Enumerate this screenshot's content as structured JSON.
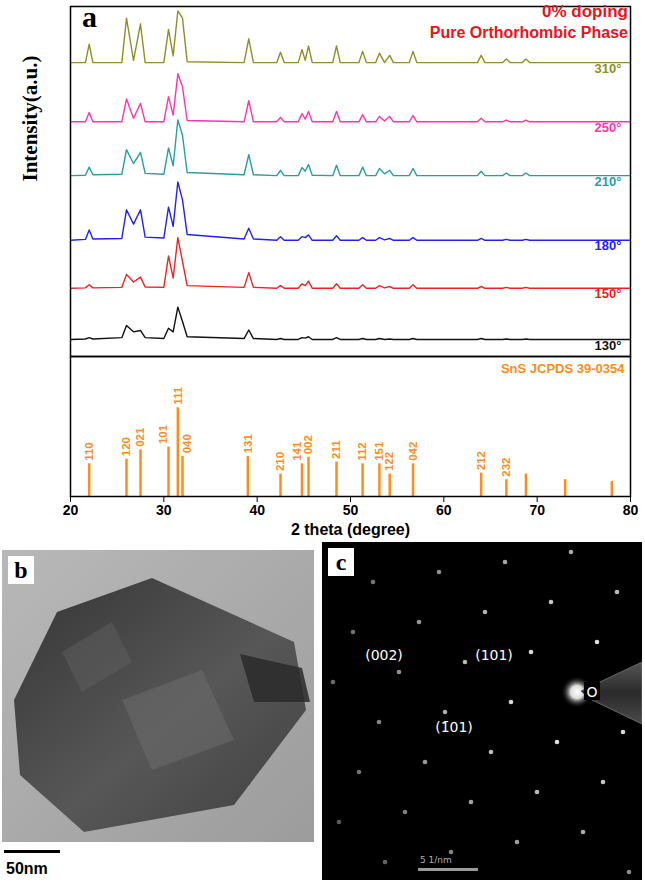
{
  "chart_data": [
    {
      "type": "line",
      "annotations": [
        "a",
        "0% doping",
        "Pure Orthorhombic Phase"
      ],
      "y_label": "Intensity(a.u.)",
      "x": [
        20,
        21.6,
        22,
        22.4,
        25.5,
        26,
        26.75,
        27.5,
        28,
        30,
        30.5,
        31,
        31.5,
        32,
        32.5,
        38.6,
        39.1,
        39.6,
        42.1,
        42.5,
        42.9,
        44.4,
        44.8,
        45.15,
        45.5,
        45.9,
        48.1,
        48.5,
        48.9,
        50.9,
        51.3,
        51.7,
        52.7,
        53.1,
        53.65,
        54.2,
        54.6,
        56.3,
        56.7,
        57.1,
        63.6,
        64,
        64.4,
        66.3,
        66.7,
        67.1,
        68.4,
        68.8,
        69.2,
        80
      ],
      "series": [
        {
          "name": "310°",
          "color": "#8f8f2a",
          "values": [
            89.5,
            89.5,
            93.6,
            89.5,
            89.5,
            99.4,
            90.0,
            98.1,
            89.5,
            89.5,
            96.9,
            91.0,
            101.0,
            99.4,
            89.7,
            89.5,
            94.8,
            89.5,
            89.5,
            91.8,
            89.5,
            89.5,
            92.4,
            90.0,
            93.2,
            89.5,
            89.5,
            93.2,
            89.5,
            89.5,
            92.0,
            89.5,
            89.5,
            91.6,
            89.5,
            91.1,
            89.5,
            89.5,
            92.0,
            89.5,
            89.5,
            91.1,
            89.5,
            89.5,
            90.3,
            89.5,
            89.5,
            90.3,
            89.5,
            89.5
          ]
        },
        {
          "name": "250°",
          "color": "#ff33aa",
          "values": [
            76.3,
            76.3,
            78.4,
            76.3,
            76.3,
            81.4,
            77.1,
            80.4,
            76.3,
            76.3,
            81.9,
            77.8,
            87.0,
            84.1,
            76.6,
            76.3,
            81.0,
            76.3,
            76.3,
            77.3,
            76.3,
            76.3,
            78.1,
            76.9,
            78.6,
            76.3,
            76.3,
            78.6,
            76.3,
            76.3,
            77.9,
            76.3,
            76.3,
            77.5,
            76.5,
            77.5,
            76.3,
            76.3,
            77.7,
            76.3,
            76.3,
            77.1,
            76.3,
            76.3,
            76.7,
            76.3,
            76.3,
            76.7,
            76.3,
            76.3
          ]
        },
        {
          "name": "210°",
          "color": "#2a9d9d",
          "values": [
            64.3,
            64.4,
            66.2,
            64.5,
            64.6,
            70.1,
            67.0,
            69.5,
            64.8,
            64.6,
            70.5,
            66.5,
            76.7,
            73.3,
            65.0,
            64.5,
            69.0,
            64.5,
            64.3,
            65.5,
            64.3,
            64.3,
            66.1,
            65.3,
            66.8,
            64.4,
            64.3,
            66.6,
            64.3,
            64.3,
            66.2,
            64.3,
            64.3,
            65.9,
            64.7,
            65.5,
            64.3,
            64.3,
            65.9,
            64.3,
            64.3,
            65.3,
            64.3,
            64.3,
            64.9,
            64.3,
            64.3,
            64.9,
            64.3,
            64.3
          ]
        },
        {
          "name": "180°",
          "color": "#2222ee",
          "values": [
            49.9,
            50.1,
            52.2,
            50.2,
            50.3,
            56.7,
            53.5,
            56.7,
            50.6,
            50.4,
            57.3,
            53.0,
            62.9,
            58.9,
            51.2,
            50.2,
            52.6,
            50.2,
            49.9,
            50.7,
            49.9,
            49.9,
            50.7,
            50.5,
            51.1,
            49.9,
            49.9,
            50.9,
            49.9,
            49.9,
            50.5,
            49.9,
            49.9,
            50.5,
            50.0,
            50.3,
            49.9,
            49.9,
            50.5,
            49.9,
            49.9,
            50.3,
            49.9,
            49.9,
            50.1,
            49.9,
            49.9,
            50.1,
            49.9,
            49.9
          ]
        },
        {
          "name": "150°",
          "color": "#ee2222",
          "values": [
            39.2,
            39.3,
            40.0,
            39.3,
            39.4,
            42.3,
            40.6,
            41.7,
            39.5,
            39.4,
            46.4,
            41.5,
            50.5,
            45.2,
            39.8,
            39.4,
            42.7,
            39.4,
            39.2,
            39.8,
            39.2,
            39.2,
            40.2,
            39.8,
            40.8,
            39.2,
            39.2,
            40.2,
            39.2,
            39.2,
            40.0,
            39.2,
            39.2,
            39.8,
            39.3,
            39.6,
            39.2,
            39.2,
            40.0,
            39.2,
            39.2,
            39.6,
            39.2,
            39.2,
            39.4,
            39.2,
            39.2,
            39.4,
            39.2,
            39.2
          ]
        },
        {
          "name": "130°",
          "color": "#111111",
          "values": [
            27.8,
            27.9,
            28.2,
            27.9,
            28.2,
            30.9,
            29.5,
            29.8,
            28.2,
            28.0,
            30.3,
            29.5,
            35.0,
            31.8,
            28.4,
            28.0,
            29.9,
            28.0,
            27.8,
            28.0,
            27.8,
            27.8,
            28.2,
            28.1,
            28.4,
            27.8,
            27.8,
            28.2,
            27.8,
            27.8,
            28.0,
            27.8,
            27.8,
            28.0,
            27.8,
            27.9,
            27.8,
            27.8,
            28.0,
            27.8,
            27.8,
            28.0,
            27.8,
            27.8,
            27.9,
            27.8,
            27.8,
            27.9,
            27.8,
            27.8
          ]
        }
      ],
      "xlim": [
        20,
        80
      ],
      "ylim": [
        24,
        102
      ],
      "yticks": [],
      "tick_labels": false
    },
    {
      "type": "stem",
      "name": "SnS JCPDS 39-0354",
      "color": "#ff8c1a",
      "x": [
        22,
        26,
        27.5,
        30.5,
        31.5,
        32,
        39,
        42.5,
        44.8,
        45.5,
        48.5,
        51.3,
        53.1,
        54.2,
        56.7,
        64,
        66.7,
        68.8,
        73,
        78
      ],
      "values": [
        7.0,
        8.0,
        10.0,
        10.6,
        19.0,
        8.6,
        8.6,
        4.8,
        7.0,
        8.4,
        7.4,
        7.0,
        7.0,
        4.8,
        7.0,
        5.0,
        3.6,
        4.8,
        3.6,
        3.2
      ],
      "labels": [
        "110",
        "120",
        "021",
        "101",
        "111",
        "040",
        "131",
        "210",
        "141",
        "002",
        "211",
        "112",
        "151",
        "122",
        "042",
        "212",
        "232",
        null,
        null,
        null
      ],
      "x_label": "2 theta (degree)",
      "xlim": [
        20,
        80
      ],
      "xticks": [
        20,
        30,
        40,
        50,
        60,
        70,
        80
      ],
      "ylim": [
        0,
        30
      ],
      "yticks": [],
      "tick_labels": "x"
    }
  ],
  "panels": [
    {
      "label": "b",
      "scale_bar": "50nm"
    },
    {
      "label": "c",
      "spot_labels": [
        "(002)",
        "(101)",
        "(1̄01)"
      ],
      "origin": "O",
      "scale_bar": "5 1/nm"
    }
  ]
}
